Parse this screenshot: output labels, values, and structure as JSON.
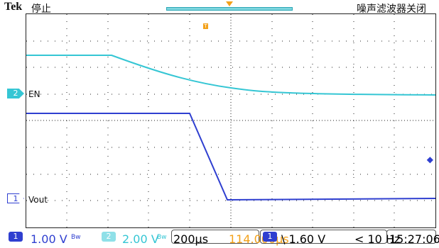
{
  "header": {
    "brand": "Tek",
    "run_state": "停止",
    "noise_filter": "噪声滤波器关闭"
  },
  "screen": {
    "channel2_marker": "2",
    "channel2_label": "EN",
    "channel1_marker": "1",
    "channel1_label": "Vout",
    "trigger_marker": "T"
  },
  "footer": {
    "ch1_id": "1",
    "ch1_scale": "1.00 V",
    "ch1_bw": "Bw",
    "ch2_id": "2",
    "ch2_scale": "2.00 V",
    "ch2_bw": "Bw",
    "timebase": "200µs",
    "delay": "114.000µs",
    "trigger_ch": "1",
    "trigger_level": "\\ 1.60 V",
    "trigger_freq": "< 10 Hz",
    "clock": "15:27:06"
  },
  "colors": {
    "ch1": "#2f3fd0",
    "ch2": "#35c6d4",
    "trigger": "#f3a11a"
  }
}
